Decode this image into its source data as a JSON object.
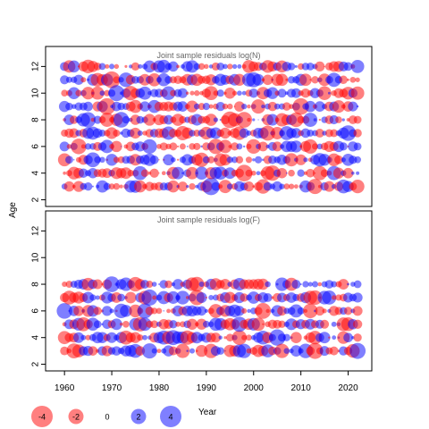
{
  "chart_data": {
    "type": "scatter",
    "subtype": "bubble",
    "ylabel_shared": "Age",
    "xlabel": "Year",
    "colors": {
      "positive": "#0000ff",
      "negative": "#ff0000",
      "opacity": 0.5
    },
    "legend": {
      "placement": "bottom-left",
      "entries": [
        {
          "label": "-4",
          "value": -4
        },
        {
          "label": "-2",
          "value": -2
        },
        {
          "label": "0",
          "value": 0
        },
        {
          "label": "2",
          "value": 2
        },
        {
          "label": "4",
          "value": 4
        }
      ]
    },
    "panels": [
      {
        "title": "Joint sample residuals log(N)",
        "xlim": [
          1956,
          2025
        ],
        "ylim": [
          1.5,
          13.5
        ],
        "xticks": [
          1960,
          1970,
          1980,
          1990,
          2000,
          2010,
          2020
        ],
        "yticks": [
          2,
          4,
          6,
          8,
          10,
          12
        ],
        "x_range": [
          1960,
          2022
        ],
        "ages": [
          3,
          4,
          5,
          6,
          7,
          8,
          9,
          10,
          11,
          12
        ],
        "residual_range": [
          -4,
          4
        ],
        "seed": 1234
      },
      {
        "title": "Joint sample residuals log(F)",
        "xlim": [
          1956,
          2025
        ],
        "ylim": [
          1.5,
          13.5
        ],
        "xticks": [
          1960,
          1970,
          1980,
          1990,
          2000,
          2010,
          2020
        ],
        "yticks": [
          2,
          4,
          6,
          8,
          10,
          12
        ],
        "x_range": [
          1960,
          2022
        ],
        "ages": [
          3,
          4,
          5,
          6,
          7,
          8
        ],
        "residual_range": [
          -4,
          4
        ],
        "seed": 9876
      }
    ]
  }
}
